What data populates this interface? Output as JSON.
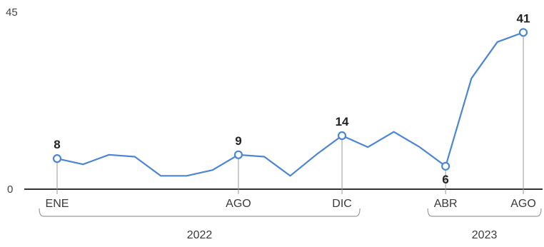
{
  "chart_data": {
    "type": "line",
    "y_axis": {
      "min_label": "0",
      "max_label": "45",
      "ylim": [
        0,
        45
      ]
    },
    "series": [
      {
        "values": [
          8,
          6.5,
          9,
          8.5,
          3.5,
          3.5,
          5,
          9,
          8.5,
          3.5,
          9,
          14,
          11,
          15,
          11,
          6,
          29,
          38.5,
          41
        ],
        "color": "#4a86d4"
      }
    ],
    "highlighted_points": [
      {
        "index": 0,
        "value": 8,
        "label": "8",
        "tick": "ENE"
      },
      {
        "index": 7,
        "value": 9,
        "label": "9",
        "tick": "AGO"
      },
      {
        "index": 11,
        "value": 14,
        "label": "14",
        "tick": "DIC"
      },
      {
        "index": 15,
        "value": 6,
        "label": "6",
        "tick": "ABR"
      },
      {
        "index": 18,
        "value": 41,
        "label": "41",
        "tick": "AGO"
      }
    ],
    "year_groups": [
      {
        "label": "2022",
        "from_index": 0,
        "to_index": 11
      },
      {
        "label": "2023",
        "from_index": 15,
        "to_index": 18
      }
    ],
    "colors": {
      "line": "#4a86d4",
      "marker_fill": "#ffffff",
      "axis": "#333333",
      "leader": "#999999",
      "bracket": "#9a9a9a"
    }
  }
}
